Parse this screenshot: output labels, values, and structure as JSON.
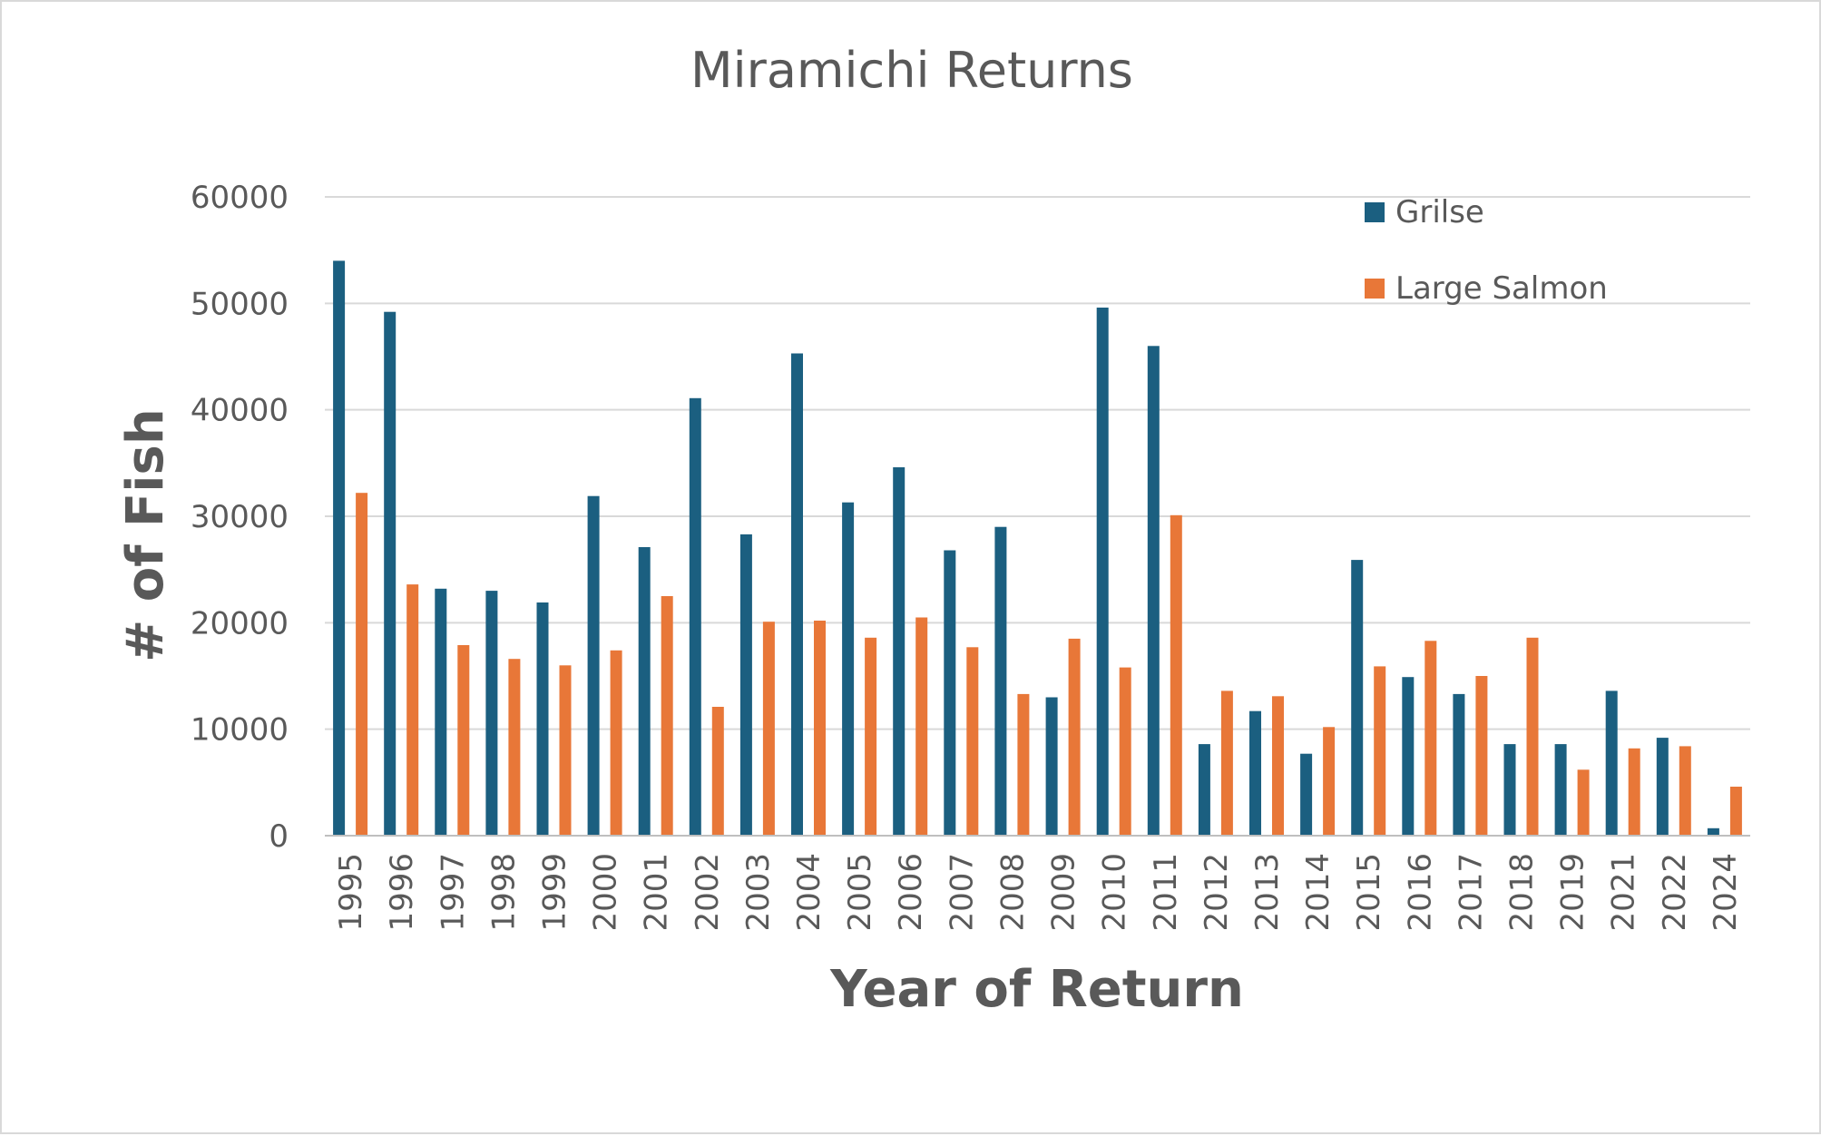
{
  "chart_data": {
    "type": "bar",
    "title": "Miramichi Returns",
    "xlabel": "Year of Return",
    "ylabel": "# of Fish",
    "ylim": [
      0,
      60000
    ],
    "yticks": [
      0,
      10000,
      20000,
      30000,
      40000,
      50000,
      60000
    ],
    "grid": true,
    "legend_position": "top-right",
    "categories": [
      "1995",
      "1996",
      "1997",
      "1998",
      "1999",
      "2000",
      "2001",
      "2002",
      "2003",
      "2004",
      "2005",
      "2006",
      "2007",
      "2008",
      "2009",
      "2010",
      "2011",
      "2012",
      "2013",
      "2014",
      "2015",
      "2016",
      "2017",
      "2018",
      "2019",
      "2021",
      "2022",
      "2024"
    ],
    "series": [
      {
        "name": "Grilse",
        "color": "#1b5f80",
        "values": [
          54000,
          49200,
          23200,
          23000,
          21900,
          31900,
          27100,
          41100,
          28300,
          45300,
          31300,
          34600,
          26800,
          29000,
          13000,
          49600,
          46000,
          8600,
          11700,
          7700,
          25900,
          14900,
          13300,
          8600,
          8600,
          13600,
          9200,
          700
        ]
      },
      {
        "name": "Large Salmon",
        "color": "#e87738",
        "values": [
          32200,
          23600,
          17900,
          16600,
          16000,
          17400,
          22500,
          12100,
          20100,
          20200,
          18600,
          20500,
          17700,
          13300,
          18500,
          15800,
          30100,
          13600,
          13100,
          10200,
          15900,
          18300,
          15000,
          18600,
          6200,
          8200,
          8400,
          4600
        ]
      }
    ]
  }
}
